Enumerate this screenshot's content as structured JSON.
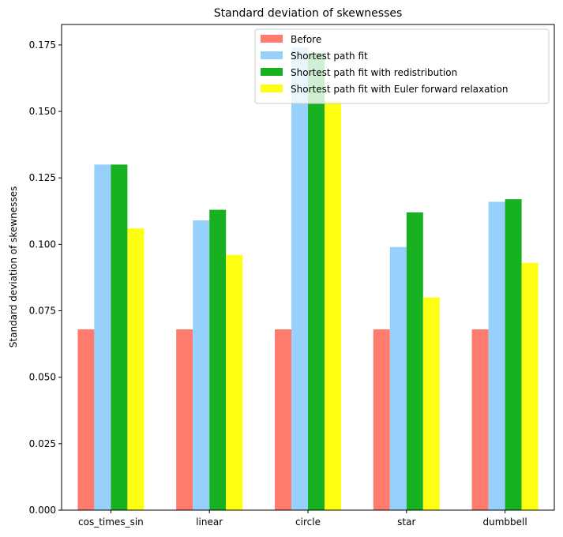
{
  "chart_data": {
    "type": "bar",
    "title": "Standard deviation of skewnesses",
    "xlabel": "",
    "ylabel": "Standard deviation of skewnesses",
    "categories": [
      "cos_times_sin",
      "linear",
      "circle",
      "star",
      "dumbbell"
    ],
    "series": [
      {
        "name": "Before",
        "color": "#ff7b6e",
        "values": [
          0.068,
          0.068,
          0.068,
          0.068,
          0.068
        ]
      },
      {
        "name": "Shortest path fit",
        "color": "#97d0fb",
        "values": [
          0.13,
          0.109,
          0.174,
          0.099,
          0.116
        ]
      },
      {
        "name": "Shortest path fit with redistribution",
        "color": "#17b121",
        "values": [
          0.13,
          0.113,
          0.172,
          0.112,
          0.117
        ]
      },
      {
        "name": "Shortest path fit with Euler forward relaxation",
        "color": "#ffff14",
        "values": [
          0.106,
          0.096,
          0.154,
          0.08,
          0.093
        ]
      }
    ],
    "ylim": [
      0,
      0.1827
    ],
    "yticks": [
      "0.000",
      "0.025",
      "0.050",
      "0.075",
      "0.100",
      "0.125",
      "0.150",
      "0.175"
    ],
    "grid": false,
    "legend_position": "top-right"
  }
}
